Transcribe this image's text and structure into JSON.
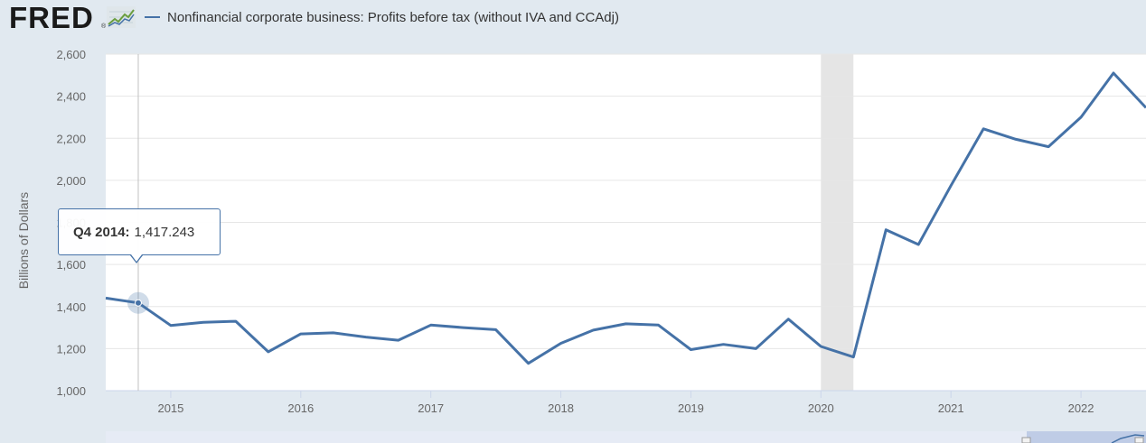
{
  "header": {
    "logo_text": "FRED",
    "logo_mark": "®",
    "logo_graph_icon": "trend-line-icon"
  },
  "legend": {
    "label": "Nonfinancial corporate business: Profits before tax (without IVA and CCAdj)",
    "color": "#4572a7"
  },
  "tooltip": {
    "date": "Q4 2014:",
    "value": "1,417.243"
  },
  "colors": {
    "background": "#e1e9f0",
    "plot_background": "#ffffff",
    "line": "#4572a7",
    "grid": "#e6e6e6",
    "recession": "#e5e5e5"
  },
  "chart_data": {
    "type": "line",
    "title": "",
    "xlabel": "",
    "ylabel": "Billions of Dollars",
    "ylim": [
      1000,
      2600
    ],
    "xlim": [
      2014.5,
      2022.5
    ],
    "yticks": [
      1000,
      1200,
      1400,
      1600,
      1800,
      2000,
      2200,
      2400,
      2600
    ],
    "ytick_labels": [
      "1,000",
      "1,200",
      "1,400",
      "1,600",
      "1,800",
      "2,000",
      "2,200",
      "2,400",
      "2,600"
    ],
    "xticks": [
      2015,
      2016,
      2017,
      2018,
      2019,
      2020,
      2021,
      2022
    ],
    "xtick_labels": [
      "2015",
      "2016",
      "2017",
      "2018",
      "2019",
      "2020",
      "2021",
      "2022"
    ],
    "grid": true,
    "recession": {
      "start": 2020.0,
      "end": 2020.25
    },
    "highlight": {
      "x": 2014.75,
      "y": 1417.243
    },
    "series": [
      {
        "name": "Nonfinancial corporate business: Profits before tax (without IVA and CCAdj)",
        "x": [
          2014.5,
          2014.75,
          2015.0,
          2015.25,
          2015.5,
          2015.75,
          2016.0,
          2016.25,
          2016.5,
          2016.75,
          2017.0,
          2017.25,
          2017.5,
          2017.75,
          2018.0,
          2018.25,
          2018.5,
          2018.75,
          2019.0,
          2019.25,
          2019.5,
          2019.75,
          2020.0,
          2020.25,
          2020.5,
          2020.75,
          2021.0,
          2021.25,
          2021.5,
          2021.75,
          2022.0,
          2022.25,
          2022.5
        ],
        "values": [
          1440,
          1417.243,
          1310,
          1325,
          1330,
          1185,
          1270,
          1275,
          1255,
          1240,
          1312,
          1300,
          1290,
          1130,
          1225,
          1288,
          1318,
          1312,
          1195,
          1220,
          1200,
          1340,
          1210,
          1160,
          1765,
          1695,
          1975,
          2245,
          2195,
          2160,
          2300,
          2510,
          2345
        ]
      }
    ]
  }
}
